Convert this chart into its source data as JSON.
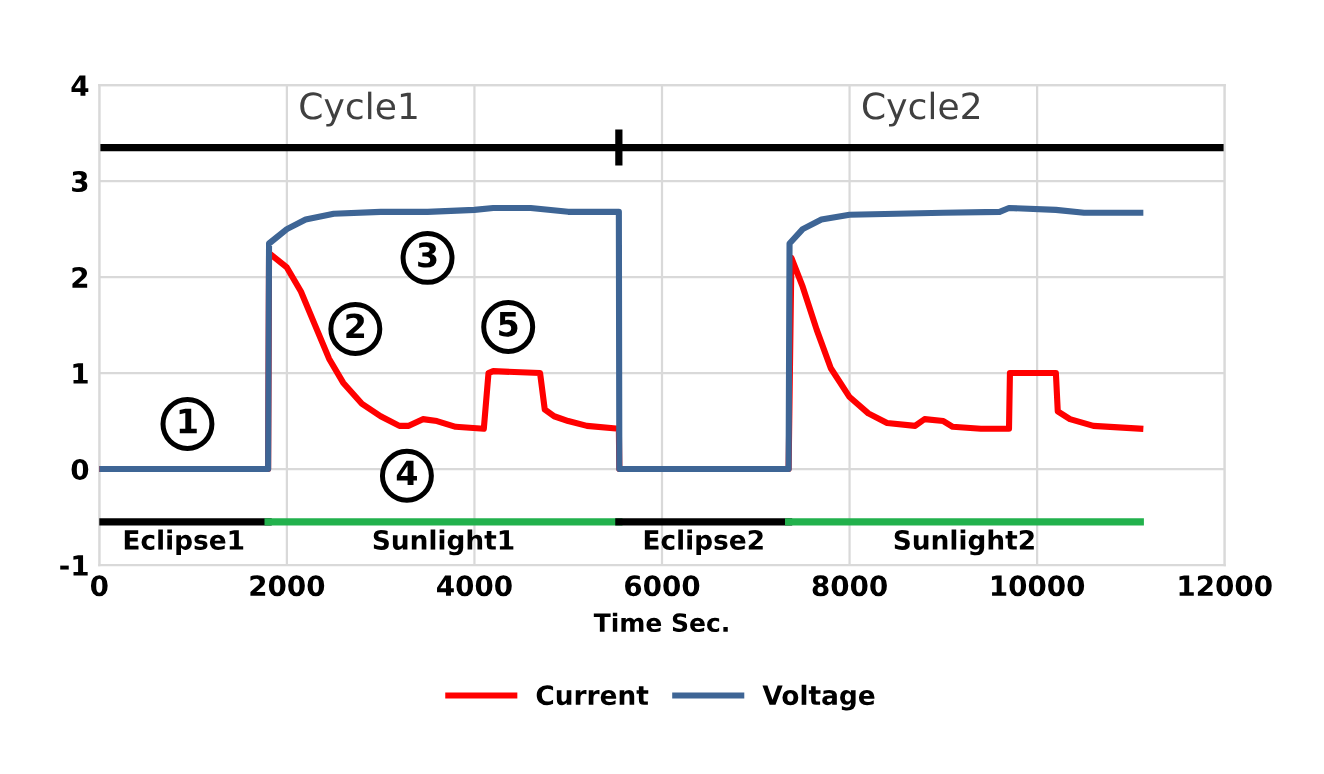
{
  "chart_data": {
    "type": "line",
    "xlabel": "Time Sec.",
    "xlim": [
      0,
      12000
    ],
    "xticks": [
      0,
      2000,
      4000,
      6000,
      8000,
      10000,
      12000
    ],
    "ylim": [
      -1,
      4
    ],
    "yticks": [
      -1,
      0,
      1,
      2,
      3,
      4
    ],
    "grid": true,
    "legend": "bottom",
    "marker": "none",
    "line_style": "solid",
    "series": [
      {
        "name": "Current",
        "color": "#ff0000",
        "x": [
          0,
          1800,
          1810,
          2000,
          2150,
          2300,
          2450,
          2600,
          2800,
          3000,
          3200,
          3300,
          3450,
          3600,
          3800,
          4100,
          4150,
          4200,
          4700,
          4750,
          4850,
          5000,
          5200,
          5540,
          5545,
          7350,
          7380,
          7500,
          7650,
          7800,
          8000,
          8200,
          8400,
          8700,
          8800,
          9000,
          9100,
          9400,
          9700,
          9710,
          10200,
          10220,
          10350,
          10600,
          11100
        ],
        "values": [
          0,
          0,
          2.25,
          2.1,
          1.85,
          1.5,
          1.15,
          0.9,
          0.68,
          0.55,
          0.45,
          0.45,
          0.52,
          0.5,
          0.44,
          0.42,
          1.0,
          1.02,
          1.0,
          0.62,
          0.55,
          0.5,
          0.45,
          0.42,
          0,
          0,
          2.2,
          1.9,
          1.45,
          1.05,
          0.75,
          0.58,
          0.48,
          0.45,
          0.52,
          0.5,
          0.44,
          0.42,
          0.42,
          1.0,
          1.0,
          0.6,
          0.52,
          0.45,
          0.42
        ]
      },
      {
        "name": "Voltage",
        "color": "#3e6595",
        "x": [
          0,
          1800,
          1810,
          2000,
          2200,
          2500,
          3000,
          3500,
          4000,
          4200,
          4600,
          5000,
          5540,
          5545,
          7350,
          7360,
          7500,
          7700,
          8000,
          8500,
          9000,
          9600,
          9700,
          10200,
          10500,
          11100
        ],
        "values": [
          0,
          0,
          2.35,
          2.5,
          2.6,
          2.66,
          2.68,
          2.68,
          2.7,
          2.72,
          2.72,
          2.68,
          2.68,
          0,
          0,
          2.35,
          2.5,
          2.6,
          2.65,
          2.66,
          2.67,
          2.68,
          2.72,
          2.7,
          2.67,
          2.67
        ]
      },
      {
        "color": "#000000",
        "x": [
          0,
          12000
        ],
        "values": [
          3.35,
          3.35
        ]
      },
      {
        "color": "#000000",
        "x": [
          5540,
          5540
        ],
        "values": [
          3.2,
          3.5
        ]
      },
      {
        "name": "Eclipse1",
        "color": "#000000",
        "x": [
          0,
          1800
        ],
        "values": [
          -0.55,
          -0.55
        ]
      },
      {
        "name": "Sunlight1",
        "color": "#22b14c",
        "x": [
          1800,
          5540
        ],
        "values": [
          -0.55,
          -0.55
        ]
      },
      {
        "name": "Eclipse2",
        "color": "#000000",
        "x": [
          5540,
          7350
        ],
        "values": [
          -0.55,
          -0.55
        ]
      },
      {
        "name": "Sunlight2",
        "color": "#22b14c",
        "x": [
          7350,
          11100
        ],
        "values": [
          -0.55,
          -0.55
        ]
      }
    ],
    "annotations": [
      "Cycle1",
      "Cycle2",
      {
        "text": "1",
        "x": 940,
        "y": 0.47
      },
      {
        "text": "2",
        "x": 2730,
        "y": 1.46
      },
      {
        "text": "3",
        "x": 3500,
        "y": 2.2
      },
      {
        "text": "4",
        "x": 3280,
        "y": -0.07
      },
      {
        "text": "5",
        "x": 4360,
        "y": 1.48
      }
    ]
  }
}
